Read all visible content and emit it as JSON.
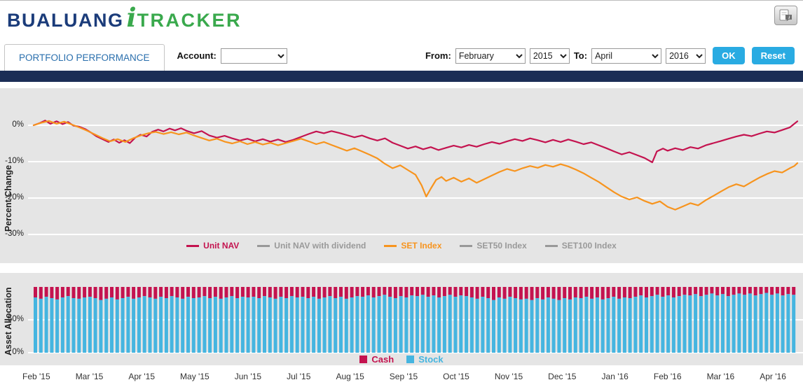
{
  "header": {
    "logo": {
      "part1": "BUALUANG",
      "part2": "i",
      "part3": "TRACKER"
    },
    "help_icon": "chat-info-icon"
  },
  "toolbar": {
    "tab_label": "PORTFOLIO PERFORMANCE",
    "account_label": "Account:",
    "account_value": "",
    "from_label": "From:",
    "from_month": "February",
    "from_year": "2015",
    "to_label": "To:",
    "to_month": "April",
    "to_year": "2016",
    "ok_label": "OK",
    "reset_label": "Reset"
  },
  "colors": {
    "navy": "#1b2d55",
    "brand_blue": "#1b3c7a",
    "brand_green": "#3aa94d",
    "tab_blue": "#2a6fad",
    "button_cyan": "#29abe2",
    "crimson": "#c4134f",
    "orange": "#f7941e",
    "gray_series": "#999999",
    "stock_blue": "#45b5e0",
    "panel_bg": "#e5e5e5"
  },
  "timeline": [
    "Feb '15",
    "Mar '15",
    "Apr '15",
    "May '15",
    "Jun '15",
    "Jul '15",
    "Aug '15",
    "Sep '15",
    "Oct '15",
    "Nov '15",
    "Dec '15",
    "Jan '16",
    "Feb '16",
    "Mar '16",
    "Apr '16"
  ],
  "chart_data": [
    {
      "type": "line",
      "ylabel": "Percent Change",
      "yticks": [
        0,
        -10,
        -20,
        -30
      ],
      "ytick_labels": [
        "0%",
        "-10%",
        "-20%",
        "-30%"
      ],
      "ylim": [
        -31,
        9
      ],
      "x_axis": "time, Feb 2015 to Apr 2016, x encoded as 0-100 percent of range",
      "grid": "white horizontal lines at each y tick",
      "legend_position": "bottom-center",
      "legend": [
        {
          "label": "Unit NAV",
          "color": "#c4134f"
        },
        {
          "label": "Unit NAV with dividend",
          "color": "#999999"
        },
        {
          "label": "SET Index",
          "color": "#f7941e"
        },
        {
          "label": "SET50 Index",
          "color": "#999999"
        },
        {
          "label": "SET100 Index",
          "color": "#999999"
        }
      ],
      "series": [
        {
          "name": "Unit NAV",
          "color": "#c4134f",
          "points": [
            [
              0,
              0
            ],
            [
              0.8,
              0.6
            ],
            [
              1.5,
              1.3
            ],
            [
              2.2,
              0.4
            ],
            [
              3,
              1.1
            ],
            [
              3.8,
              0.3
            ],
            [
              4.5,
              0.9
            ],
            [
              5.2,
              -0.1
            ],
            [
              6,
              -0.4
            ],
            [
              6.8,
              -1.1
            ],
            [
              7.5,
              -2
            ],
            [
              8.2,
              -3
            ],
            [
              9,
              -3.8
            ],
            [
              9.8,
              -4.6
            ],
            [
              10.5,
              -3.9
            ],
            [
              11.2,
              -4.8
            ],
            [
              11.9,
              -4.1
            ],
            [
              12.6,
              -4.9
            ],
            [
              13.3,
              -3.4
            ],
            [
              14,
              -2.6
            ],
            [
              14.8,
              -3.1
            ],
            [
              15.5,
              -1.8
            ],
            [
              16.3,
              -1.2
            ],
            [
              17,
              -1.7
            ],
            [
              17.8,
              -0.9
            ],
            [
              18.5,
              -1.4
            ],
            [
              19.3,
              -0.8
            ],
            [
              20,
              -1.5
            ],
            [
              21,
              -2.2
            ],
            [
              22,
              -1.6
            ],
            [
              23,
              -2.8
            ],
            [
              24,
              -3.4
            ],
            [
              25,
              -2.9
            ],
            [
              26,
              -3.6
            ],
            [
              27,
              -4.2
            ],
            [
              28,
              -3.7
            ],
            [
              29,
              -4.4
            ],
            [
              30,
              -3.8
            ],
            [
              31,
              -4.5
            ],
            [
              32,
              -3.9
            ],
            [
              33,
              -4.6
            ],
            [
              34,
              -4
            ],
            [
              35,
              -3.2
            ],
            [
              36,
              -2.4
            ],
            [
              37,
              -1.7
            ],
            [
              38,
              -2.2
            ],
            [
              39,
              -1.6
            ],
            [
              40,
              -2.1
            ],
            [
              41,
              -2.7
            ],
            [
              42,
              -3.3
            ],
            [
              43,
              -2.8
            ],
            [
              44,
              -3.6
            ],
            [
              45,
              -4.2
            ],
            [
              46,
              -3.6
            ],
            [
              47,
              -4.8
            ],
            [
              48,
              -5.6
            ],
            [
              49,
              -6.4
            ],
            [
              50,
              -5.8
            ],
            [
              51,
              -6.6
            ],
            [
              52,
              -6
            ],
            [
              53,
              -6.8
            ],
            [
              54,
              -6.2
            ],
            [
              55,
              -5.6
            ],
            [
              56,
              -6.1
            ],
            [
              57,
              -5.4
            ],
            [
              58,
              -5.9
            ],
            [
              59,
              -5.2
            ],
            [
              60,
              -4.6
            ],
            [
              61,
              -5.1
            ],
            [
              62,
              -4.4
            ],
            [
              63,
              -3.8
            ],
            [
              64,
              -4.3
            ],
            [
              65,
              -3.6
            ],
            [
              66,
              -4.1
            ],
            [
              67,
              -4.7
            ],
            [
              68,
              -4
            ],
            [
              69,
              -4.6
            ],
            [
              70,
              -3.9
            ],
            [
              71,
              -4.5
            ],
            [
              72,
              -5.2
            ],
            [
              73,
              -4.7
            ],
            [
              74,
              -5.5
            ],
            [
              75,
              -6.3
            ],
            [
              76,
              -7.2
            ],
            [
              77,
              -8
            ],
            [
              78,
              -7.4
            ],
            [
              79,
              -8.2
            ],
            [
              80,
              -9
            ],
            [
              81,
              -10.2
            ],
            [
              81.6,
              -7.2
            ],
            [
              82.4,
              -6.4
            ],
            [
              83,
              -7
            ],
            [
              84,
              -6.3
            ],
            [
              85,
              -6.8
            ],
            [
              86,
              -6
            ],
            [
              87,
              -6.4
            ],
            [
              88,
              -5.5
            ],
            [
              89,
              -4.9
            ],
            [
              90,
              -4.3
            ],
            [
              91,
              -3.7
            ],
            [
              92,
              -3.1
            ],
            [
              93,
              -2.6
            ],
            [
              94,
              -3
            ],
            [
              95,
              -2.3
            ],
            [
              96,
              -1.7
            ],
            [
              97,
              -2
            ],
            [
              98,
              -1.3
            ],
            [
              99,
              -0.6
            ],
            [
              99.6,
              0.4
            ],
            [
              100,
              1.1
            ]
          ]
        },
        {
          "name": "SET Index",
          "color": "#f7941e",
          "points": [
            [
              0,
              0
            ],
            [
              1,
              0.7
            ],
            [
              2,
              1.2
            ],
            [
              3,
              0.4
            ],
            [
              4,
              1
            ],
            [
              5,
              0.2
            ],
            [
              6,
              -0.6
            ],
            [
              7,
              -1.5
            ],
            [
              8,
              -2.5
            ],
            [
              9,
              -3.5
            ],
            [
              10,
              -4.4
            ],
            [
              11,
              -3.8
            ],
            [
              12,
              -4.6
            ],
            [
              13,
              -3.6
            ],
            [
              14,
              -2.8
            ],
            [
              15,
              -2.2
            ],
            [
              16,
              -1.8
            ],
            [
              17,
              -2.4
            ],
            [
              18,
              -1.9
            ],
            [
              19,
              -2.5
            ],
            [
              20,
              -2
            ],
            [
              21,
              -2.8
            ],
            [
              22,
              -3.5
            ],
            [
              23,
              -4.2
            ],
            [
              24,
              -3.7
            ],
            [
              25,
              -4.5
            ],
            [
              26,
              -5
            ],
            [
              27,
              -4.4
            ],
            [
              28,
              -5.2
            ],
            [
              29,
              -4.6
            ],
            [
              30,
              -5.3
            ],
            [
              31,
              -4.8
            ],
            [
              32,
              -5.5
            ],
            [
              33,
              -4.9
            ],
            [
              34,
              -4.3
            ],
            [
              35,
              -3.7
            ],
            [
              36,
              -4.4
            ],
            [
              37,
              -5.2
            ],
            [
              38,
              -4.6
            ],
            [
              39,
              -5.4
            ],
            [
              40,
              -6.2
            ],
            [
              41,
              -7
            ],
            [
              42,
              -6.3
            ],
            [
              43,
              -7.2
            ],
            [
              44,
              -8.1
            ],
            [
              45,
              -9.1
            ],
            [
              46,
              -10.6
            ],
            [
              47,
              -11.8
            ],
            [
              48,
              -11
            ],
            [
              49,
              -12.3
            ],
            [
              50,
              -13.6
            ],
            [
              50.8,
              -16.5
            ],
            [
              51.4,
              -19.6
            ],
            [
              52,
              -17.4
            ],
            [
              52.7,
              -15
            ],
            [
              53.4,
              -14.2
            ],
            [
              54,
              -15.3
            ],
            [
              55,
              -14.4
            ],
            [
              56,
              -15.5
            ],
            [
              57,
              -14.6
            ],
            [
              58,
              -15.8
            ],
            [
              59,
              -14.8
            ],
            [
              60,
              -13.8
            ],
            [
              61,
              -12.8
            ],
            [
              62,
              -12
            ],
            [
              63,
              -12.6
            ],
            [
              64,
              -11.8
            ],
            [
              65,
              -11.2
            ],
            [
              66,
              -11.7
            ],
            [
              67,
              -10.9
            ],
            [
              68,
              -11.4
            ],
            [
              69,
              -10.7
            ],
            [
              70,
              -11.3
            ],
            [
              71,
              -12.2
            ],
            [
              72,
              -13.2
            ],
            [
              73,
              -14.4
            ],
            [
              74,
              -15.6
            ],
            [
              75,
              -17
            ],
            [
              76,
              -18.4
            ],
            [
              77,
              -19.6
            ],
            [
              78,
              -20.4
            ],
            [
              79,
              -19.8
            ],
            [
              80,
              -20.8
            ],
            [
              81,
              -21.6
            ],
            [
              82,
              -20.9
            ],
            [
              83,
              -22.4
            ],
            [
              84,
              -23.2
            ],
            [
              85,
              -22.3
            ],
            [
              86,
              -21.4
            ],
            [
              87,
              -22
            ],
            [
              88,
              -20.6
            ],
            [
              89,
              -19.4
            ],
            [
              90,
              -18.2
            ],
            [
              91,
              -17
            ],
            [
              92,
              -16.2
            ],
            [
              93,
              -16.8
            ],
            [
              94,
              -15.6
            ],
            [
              95,
              -14.4
            ],
            [
              96,
              -13.4
            ],
            [
              97,
              -12.6
            ],
            [
              98,
              -13
            ],
            [
              99,
              -11.8
            ],
            [
              99.6,
              -11.2
            ],
            [
              100,
              -10.4
            ]
          ]
        }
      ]
    },
    {
      "type": "bar",
      "ylabel": "Asset Allocation",
      "stacked": true,
      "yticks": [
        50,
        0
      ],
      "ytick_labels": [
        "50%",
        "0%"
      ],
      "ylim": [
        0,
        100
      ],
      "note": "each thin bar totals 100%; cash = 100 - stock",
      "legend_position": "bottom-center",
      "legend": [
        {
          "label": "Cash",
          "color": "#c4134f"
        },
        {
          "label": "Stock",
          "color": "#45b5e0"
        }
      ],
      "stock_pct": [
        84,
        82,
        85,
        83,
        81,
        84,
        86,
        83,
        82,
        84,
        85,
        83,
        80,
        82,
        84,
        81,
        83,
        85,
        82,
        84,
        86,
        84,
        82,
        85,
        83,
        86,
        84,
        82,
        85,
        83,
        84,
        86,
        83,
        85,
        82,
        84,
        86,
        83,
        85,
        84,
        85,
        83,
        86,
        84,
        82,
        85,
        83,
        86,
        84,
        85,
        83,
        85,
        82,
        84,
        86,
        83,
        85,
        82,
        84,
        86,
        85,
        87,
        84,
        86,
        88,
        85,
        83,
        86,
        84,
        87,
        86,
        88,
        85,
        87,
        84,
        86,
        88,
        85,
        87,
        86,
        84,
        82,
        85,
        83,
        80,
        84,
        82,
        85,
        83,
        81,
        82,
        80,
        83,
        81,
        84,
        82,
        80,
        83,
        81,
        84,
        83,
        85,
        82,
        84,
        81,
        83,
        85,
        82,
        84,
        83,
        85,
        87,
        84,
        86,
        88,
        85,
        87,
        84,
        86,
        88,
        87,
        89,
        86,
        88,
        90,
        87,
        89,
        86,
        88,
        90,
        88,
        90,
        87,
        89,
        91,
        88,
        90,
        87,
        89,
        88
      ]
    }
  ]
}
